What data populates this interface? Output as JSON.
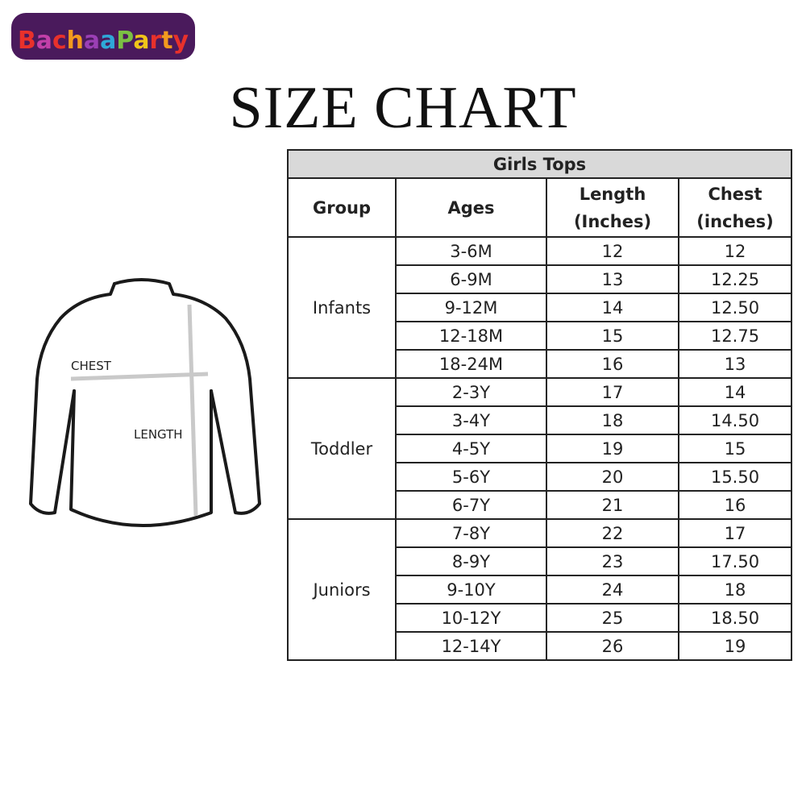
{
  "logo": {
    "text": "BachaaParty"
  },
  "title": "SIZE CHART",
  "diagram": {
    "chest_label": "CHEST",
    "length_label": "LENGTH"
  },
  "table": {
    "caption": "Girls Tops",
    "headers": {
      "group": "Group",
      "ages": "Ages",
      "length_1": "Length",
      "length_2": "(Inches)",
      "chest_1": "Chest",
      "chest_2": "(inches)"
    },
    "groups": [
      {
        "name": "Infants",
        "rows": [
          {
            "age": "3-6M",
            "length": "12",
            "chest": "12"
          },
          {
            "age": "6-9M",
            "length": "13",
            "chest": "12.25"
          },
          {
            "age": "9-12M",
            "length": "14",
            "chest": "12.50"
          },
          {
            "age": "12-18M",
            "length": "15",
            "chest": "12.75"
          },
          {
            "age": "18-24M",
            "length": "16",
            "chest": "13"
          }
        ]
      },
      {
        "name": "Toddler",
        "rows": [
          {
            "age": "2-3Y",
            "length": "17",
            "chest": "14"
          },
          {
            "age": "3-4Y",
            "length": "18",
            "chest": "14.50"
          },
          {
            "age": "4-5Y",
            "length": "19",
            "chest": "15"
          },
          {
            "age": "5-6Y",
            "length": "20",
            "chest": "15.50"
          },
          {
            "age": "6-7Y",
            "length": "21",
            "chest": "16"
          }
        ]
      },
      {
        "name": "Juniors",
        "rows": [
          {
            "age": "7-8Y",
            "length": "22",
            "chest": "17"
          },
          {
            "age": "8-9Y",
            "length": "23",
            "chest": "17.50"
          },
          {
            "age": "9-10Y",
            "length": "24",
            "chest": "18"
          },
          {
            "age": "10-12Y",
            "length": "25",
            "chest": "18.50"
          },
          {
            "age": "12-14Y",
            "length": "26",
            "chest": "19"
          }
        ]
      }
    ]
  }
}
